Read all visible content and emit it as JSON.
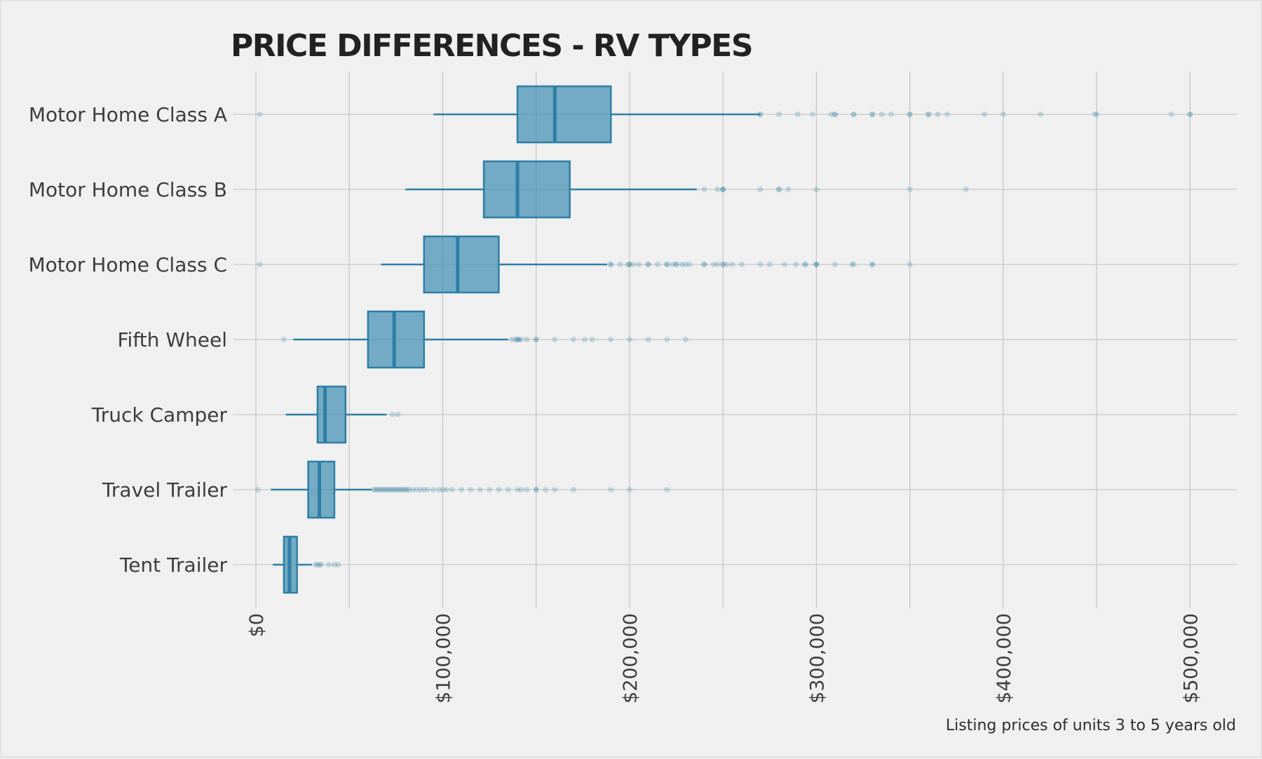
{
  "chart_data": {
    "type": "boxplot",
    "title": "PRICE DIFFERENCES - RV TYPES",
    "caption": "Listing prices of units 3 to 5 years old",
    "xlim": [
      -12000,
      525000
    ],
    "x_ticks": [
      0,
      100000,
      200000,
      300000,
      400000,
      500000
    ],
    "x_tick_labels": [
      "$0",
      "$100,000",
      "$200,000",
      "$300,000",
      "$400,000",
      "$500,000"
    ],
    "orientation": "horizontal",
    "grid": true,
    "legend": "none",
    "colors": {
      "box_fill": "#2e86ab",
      "box_stroke": "#2e7ea6",
      "outlier": "#3e86a8",
      "grid": "#c8c8c8",
      "background": "#f0f0f0"
    },
    "categories": [
      "Motor Home Class A",
      "Motor Home Class B",
      "Motor Home Class C",
      "Fifth Wheel",
      "Truck Camper",
      "Travel Trailer",
      "Tent Trailer"
    ],
    "boxes": [
      {
        "category": "Motor Home Class A",
        "whisker_low": 95000,
        "q1": 140000,
        "median": 160000,
        "q3": 190000,
        "whisker_high": 270000,
        "outliers": [
          2000,
          270000,
          270000,
          280000,
          290000,
          298000,
          308000,
          310000,
          310000,
          320000,
          320000,
          330000,
          330000,
          335000,
          340000,
          350000,
          350000,
          360000,
          360000,
          365000,
          370000,
          390000,
          400000,
          420000,
          449000,
          450000,
          490000,
          500000,
          500000
        ]
      },
      {
        "category": "Motor Home Class B",
        "whisker_low": 80000,
        "q1": 122000,
        "median": 140000,
        "q3": 168000,
        "whisker_high": 236000,
        "outliers": [
          240000,
          247000,
          250000,
          250000,
          250000,
          270000,
          280000,
          280000,
          285000,
          300000,
          350000,
          380000
        ]
      },
      {
        "category": "Motor Home Class C",
        "whisker_low": 67000,
        "q1": 90000,
        "median": 108000,
        "q3": 130000,
        "whisker_high": 188000,
        "outliers": [
          2000,
          190000,
          190000,
          195000,
          199000,
          200000,
          200000,
          202000,
          205000,
          210000,
          210000,
          215000,
          220000,
          220000,
          223000,
          225000,
          225000,
          228000,
          230000,
          232000,
          240000,
          240000,
          245000,
          247000,
          250000,
          250000,
          252000,
          255000,
          260000,
          270000,
          275000,
          283000,
          289000,
          294000,
          294000,
          300000,
          300000,
          300000,
          310000,
          319000,
          320000,
          330000,
          330000,
          350000
        ]
      },
      {
        "category": "Fifth Wheel",
        "whisker_low": 20000,
        "q1": 60000,
        "median": 74000,
        "q3": 90000,
        "whisker_high": 135000,
        "outliers": [
          15000,
          137000,
          139000,
          140000,
          140000,
          141000,
          142000,
          145000,
          150000,
          150000,
          160000,
          170000,
          176000,
          180000,
          190000,
          200000,
          210000,
          220000,
          230000
        ]
      },
      {
        "category": "Truck Camper",
        "whisker_low": 16000,
        "q1": 33000,
        "median": 37000,
        "q3": 48000,
        "whisker_high": 70000,
        "outliers": [
          73000,
          76000
        ]
      },
      {
        "category": "Travel Trailer",
        "whisker_low": 8000,
        "q1": 28000,
        "median": 34000,
        "q3": 42000,
        "whisker_high": 62000,
        "outliers": [
          1000,
          63000,
          64000,
          65000,
          66000,
          67000,
          68000,
          69000,
          70000,
          71000,
          72000,
          73000,
          74000,
          75000,
          76000,
          77000,
          78000,
          79000,
          80000,
          81000,
          82000,
          84000,
          86000,
          88000,
          90000,
          92000,
          95000,
          98000,
          100000,
          102000,
          105000,
          110000,
          115000,
          120000,
          125000,
          130000,
          135000,
          140000,
          142000,
          145000,
          150000,
          150000,
          155000,
          160000,
          170000,
          190000,
          200000,
          220000
        ]
      },
      {
        "category": "Tent Trailer",
        "whisker_low": 9000,
        "q1": 15000,
        "median": 18000,
        "q3": 22000,
        "whisker_high": 30000,
        "outliers": [
          32000,
          33000,
          34000,
          35000,
          39000,
          42000,
          44000
        ]
      }
    ]
  }
}
